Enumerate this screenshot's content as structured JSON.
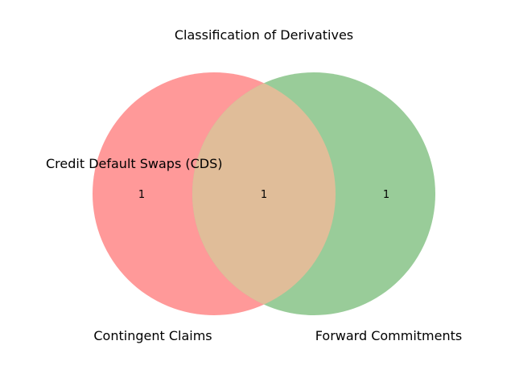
{
  "title": "Classification of Derivatives",
  "sets": [
    {
      "name": "Contingent Claims",
      "color": "#ff9999"
    },
    {
      "name": "Forward Commitments",
      "color": "#99cc99"
    }
  ],
  "overlap_color": "#e0bd99",
  "regions": {
    "left_only": "1",
    "intersection": "1",
    "right_only": "1"
  },
  "annotation": "Credit Default Swaps (CDS)"
}
